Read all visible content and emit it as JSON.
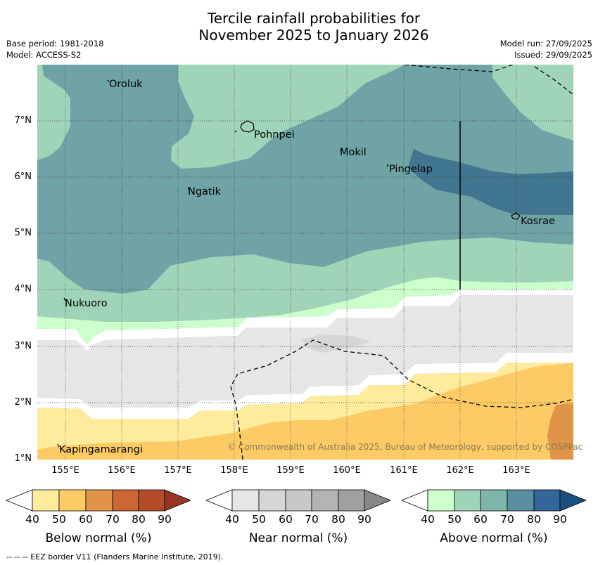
{
  "title_line1": "Tercile rainfall probabilities for",
  "title_line2": "November 2025 to January 2026",
  "meta": {
    "base_period": "Base period: 1981-2018",
    "model": "Model: ACCESS-S2",
    "model_run": "Model run: 27/09/2025",
    "issued": "Issued: 29/09/2025"
  },
  "map": {
    "lon_ticks": [
      "155°E",
      "156°E",
      "157°E",
      "158°E",
      "159°E",
      "160°E",
      "161°E",
      "162°E",
      "163°E"
    ],
    "lat_ticks": [
      "7°N",
      "6°N",
      "5°N",
      "4°N",
      "3°N",
      "2°N",
      "1°N"
    ],
    "places": {
      "oroluk": "Oroluk",
      "pohnpei": "Pohnpei",
      "mokil": "Mokil",
      "pingelap": "Pingelap",
      "ngatik": "Ngatik",
      "kosrae": "Kosrae",
      "nukuoro": "Nukuoro",
      "kapingamarangi": "Kapingamarangi"
    },
    "copyright": "© Commonwealth of Australia 2025, Bureau of Meteorology, supported by COSPPac",
    "colors": {
      "above_50": "#a0d4b8",
      "above_60": "#6fa3a5",
      "above_70": "#40768f",
      "above_40": "#ccffcc",
      "near_40": "#e6e6e6",
      "near_50": "#d6d6d6",
      "below_40": "#ffeb9c",
      "below_50": "#fdcb66",
      "below_60": "#e09448"
    }
  },
  "colorbars": [
    {
      "label": "Below normal (%)",
      "ticks": [
        "40",
        "50",
        "60",
        "70",
        "80",
        "90"
      ],
      "colors": [
        "#ffeb9c",
        "#fdcb66",
        "#e09448",
        "#cc6633",
        "#b34d29",
        "#993322"
      ]
    },
    {
      "label": "Near normal (%)",
      "ticks": [
        "40",
        "50",
        "60",
        "70",
        "80",
        "90"
      ],
      "colors": [
        "#e6e6e6",
        "#d6d6d6",
        "#c8c8c8",
        "#b3b3b3",
        "#a0a0a0",
        "#888888"
      ]
    },
    {
      "label": "Above normal (%)",
      "ticks": [
        "40",
        "50",
        "60",
        "70",
        "80",
        "90"
      ],
      "colors": [
        "#ccffcc",
        "#a0d4b8",
        "#80b5aa",
        "#5a8fa0",
        "#336699",
        "#1a4d80"
      ]
    }
  ],
  "footnote": "--  --  -- EEZ border V11 (Flanders Marine Institute, 2019)."
}
